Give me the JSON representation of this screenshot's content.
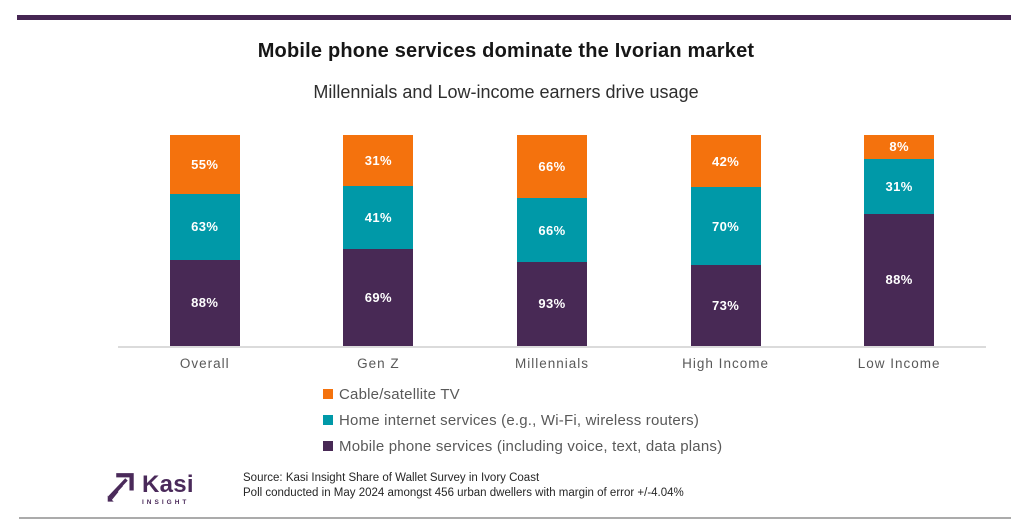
{
  "colors": {
    "top_rule": "#462653",
    "bottom_rule": "#ABABAB",
    "baseline": "#DBDBDB",
    "title_text": "#161616",
    "subtitle_text": "#2E2E2E",
    "axis_text": "#595959",
    "source_text": "#262626",
    "logo": "#4A2A5A",
    "orange": "#F4720D",
    "teal": "#0099A8",
    "purple": "#482955"
  },
  "chart_data": {
    "type": "bar",
    "stacking": "stacked-100",
    "title": "Mobile phone services dominate the Ivorian market",
    "subtitle": "Millennials and Low-income earners drive usage",
    "categories": [
      "Overall",
      "Gen Z",
      "Millennials",
      "High Income",
      "Low Income"
    ],
    "series": [
      {
        "name": "Cable/satellite TV",
        "color": "#F4720D",
        "values": [
          55,
          31,
          66,
          42,
          8
        ]
      },
      {
        "name": "Home internet services (e.g., Wi-Fi, wireless routers)",
        "color": "#0099A8",
        "values": [
          63,
          41,
          66,
          70,
          31
        ]
      },
      {
        "name": "Mobile phone services (including voice, text, data plans)",
        "color": "#482955",
        "values": [
          88,
          69,
          93,
          73,
          88
        ]
      }
    ],
    "series_order_top_to_bottom": [
      "Cable/satellite TV",
      "Home internet services (e.g., Wi-Fi, wireless routers)",
      "Mobile phone services (including voice, text, data plans)"
    ],
    "value_labels": "inside segments, white bold, percent format",
    "legend_position": "bottom-left",
    "grid": false,
    "y_axis": "hidden; all bars equal height, each segment sized value / stack total"
  },
  "footer": {
    "logo": {
      "text": "Kasi",
      "subtext": "INSIGHT"
    },
    "source_line1": "Source: Kasi Insight Share of Wallet Survey in Ivory Coast",
    "source_line2": "Poll conducted in May 2024 amongst 456 urban dwellers with margin of error +/-4.04%"
  }
}
